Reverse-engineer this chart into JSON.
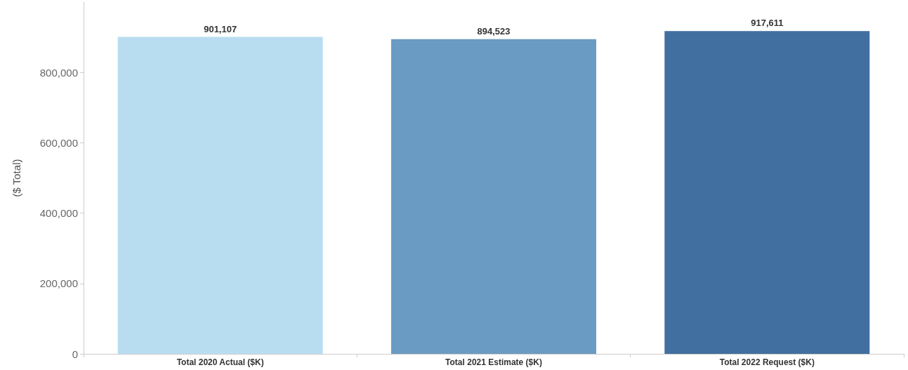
{
  "chart_data": {
    "type": "bar",
    "ylabel": "($ Total)",
    "categories": [
      "Total 2020 Actual ($K)",
      "Total 2021 Estimate ($K)",
      "Total 2022 Request ($K)"
    ],
    "values": [
      901107,
      894523,
      917611
    ],
    "value_labels": [
      "901,107",
      "894,523",
      "917,611"
    ],
    "colors": [
      "#b9ddf0",
      "#6a9bc3",
      "#416f9f"
    ],
    "ylim": [
      0,
      1000000
    ],
    "yticks": [
      0,
      {
        "value": 200000,
        "label": "200,000"
      },
      {
        "value": 400000,
        "label": "400,000"
      },
      {
        "value": 600000,
        "label": "600,000"
      },
      {
        "value": 800000,
        "label": "800,000"
      }
    ],
    "grid": false
  }
}
